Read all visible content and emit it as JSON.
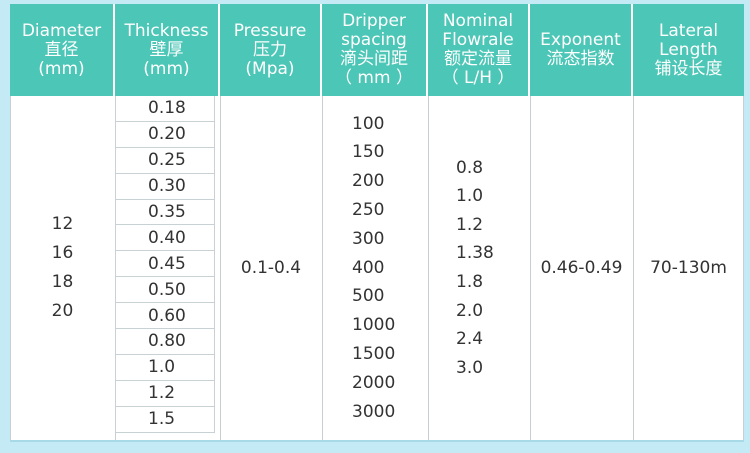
{
  "headers": {
    "diameter": [
      "Diameter",
      "直径",
      "(mm)"
    ],
    "thickness": [
      "Thickness",
      "壁厚",
      "(mm)"
    ],
    "pressure": [
      "Pressure",
      "压力",
      "(Mpa)"
    ],
    "spacing": [
      "Dripper",
      "spacing",
      "滴头间距",
      "（ mm ）"
    ],
    "flow": [
      "Nominal",
      "Flowrale",
      "额定流量",
      "（ L/H ）"
    ],
    "exponent": [
      "Exponent",
      "流态指数"
    ],
    "lateral": [
      "Lateral",
      "Length",
      "铺设长度"
    ]
  },
  "diameters": [
    "12",
    "16",
    "18",
    "20"
  ],
  "thicknesses": [
    "0.18",
    "0.20",
    "0.25",
    "0.30",
    "0.35",
    "0.40",
    "0.45",
    "0.50",
    "0.60",
    "0.80",
    "1.0",
    "1.2",
    "1.5"
  ],
  "pressure": "0.1-0.4",
  "spacings": [
    "100",
    "150",
    "200",
    "250",
    "300",
    "400",
    "500",
    "1000",
    "1500",
    "2000",
    "3000"
  ],
  "flows": [
    "0.8",
    "1.0",
    "1.2",
    "1.38",
    "1.8",
    "2.0",
    "2.4",
    "3.0"
  ],
  "exponent": "0.46-0.49",
  "lateral_length": "70-130m"
}
